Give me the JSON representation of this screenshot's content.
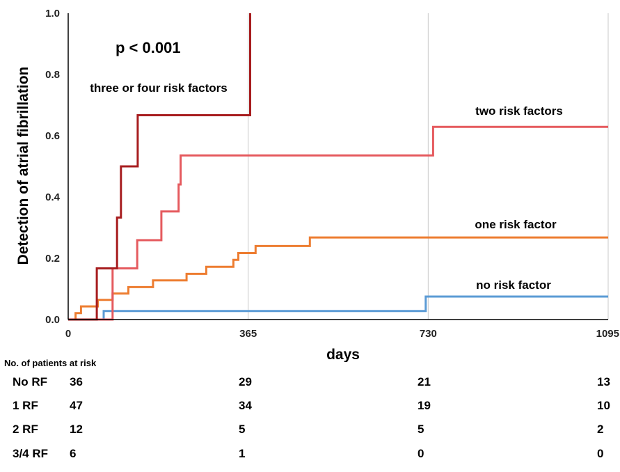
{
  "chart_data": {
    "type": "line",
    "step": true,
    "ylabel": "Detection of atrial fibrillation",
    "xlabel": "days",
    "xlim": [
      0,
      1095
    ],
    "ylim": [
      0,
      1.0
    ],
    "xticks": [
      0,
      365,
      730,
      1095
    ],
    "yticks": [
      0.0,
      0.2,
      0.4,
      0.6,
      0.8,
      1.0
    ],
    "ytick_labels": [
      "0.0",
      "0.2",
      "0.4",
      "0.6",
      "0.8",
      "1.0"
    ],
    "grid": "vertical",
    "annotation": "p < 0.001",
    "series": [
      {
        "name": "no risk factor",
        "color": "#5b9bd5",
        "points": [
          [
            0,
            0
          ],
          [
            72,
            0
          ],
          [
            72,
            0.028
          ],
          [
            725,
            0.028
          ],
          [
            725,
            0.075
          ],
          [
            1095,
            0.075
          ]
        ]
      },
      {
        "name": "one risk factor",
        "color": "#ed7d31",
        "points": [
          [
            0,
            0
          ],
          [
            15,
            0
          ],
          [
            15,
            0.021
          ],
          [
            26,
            0.021
          ],
          [
            26,
            0.043
          ],
          [
            60,
            0.043
          ],
          [
            60,
            0.064
          ],
          [
            90,
            0.064
          ],
          [
            90,
            0.085
          ],
          [
            122,
            0.085
          ],
          [
            122,
            0.106
          ],
          [
            172,
            0.106
          ],
          [
            172,
            0.128
          ],
          [
            240,
            0.128
          ],
          [
            240,
            0.149
          ],
          [
            280,
            0.149
          ],
          [
            280,
            0.172
          ],
          [
            335,
            0.172
          ],
          [
            335,
            0.195
          ],
          [
            345,
            0.195
          ],
          [
            345,
            0.217
          ],
          [
            380,
            0.217
          ],
          [
            380,
            0.24
          ],
          [
            490,
            0.24
          ],
          [
            490,
            0.268
          ],
          [
            1095,
            0.268
          ]
        ]
      },
      {
        "name": "two risk factors",
        "color": "#e55a5e",
        "points": [
          [
            0,
            0
          ],
          [
            90,
            0
          ],
          [
            90,
            0.167
          ],
          [
            140,
            0.167
          ],
          [
            140,
            0.259
          ],
          [
            189,
            0.259
          ],
          [
            189,
            0.353
          ],
          [
            224,
            0.353
          ],
          [
            224,
            0.441
          ],
          [
            228,
            0.441
          ],
          [
            228,
            0.536
          ],
          [
            740,
            0.536
          ],
          [
            740,
            0.629
          ],
          [
            1095,
            0.629
          ]
        ]
      },
      {
        "name": "three or four risk factors",
        "color": "#a71d1f",
        "points": [
          [
            0,
            0
          ],
          [
            58,
            0
          ],
          [
            58,
            0.167
          ],
          [
            99,
            0.167
          ],
          [
            99,
            0.333
          ],
          [
            107,
            0.333
          ],
          [
            107,
            0.5
          ],
          [
            141,
            0.5
          ],
          [
            141,
            0.667
          ],
          [
            369,
            0.667
          ],
          [
            369,
            1.0
          ]
        ]
      }
    ],
    "series_labels": [
      "no risk factor",
      "one risk factor",
      "two risk factors",
      "three or four risk factors"
    ]
  },
  "risk_table": {
    "title": "No. of patients at risk",
    "rows": [
      {
        "label": "No RF",
        "values": [
          "36",
          "29",
          "21",
          "13"
        ]
      },
      {
        "label": "1 RF",
        "values": [
          "47",
          "34",
          "19",
          "10"
        ]
      },
      {
        "label": "2 RF",
        "values": [
          "12",
          "5",
          "5",
          "2"
        ]
      },
      {
        "label": "3/4 RF",
        "values": [
          "6",
          "1",
          "0",
          "0"
        ]
      }
    ]
  }
}
